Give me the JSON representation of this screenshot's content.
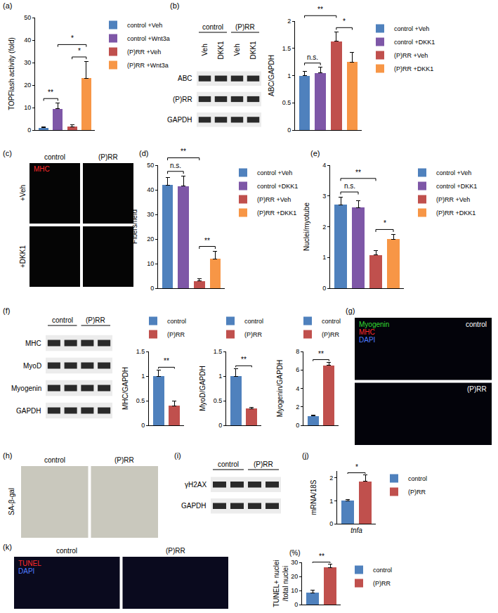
{
  "panel_labels": [
    "(a)",
    "(b)",
    "(c)",
    "(d)",
    "(e)",
    "(f)",
    "(g)",
    "(h)",
    "(i)",
    "(j)",
    "(k)"
  ],
  "chart_data": [
    {
      "type": "bar",
      "y_label": "TOPFlash activity (fold)",
      "ylim": [
        0,
        50
      ],
      "yticks": [
        0,
        10,
        20,
        30,
        40,
        50
      ],
      "grid": false,
      "legend": "right",
      "tick_labels": "y",
      "series": [
        {
          "name": "control +Veh",
          "color": "#4F81BD",
          "values": [
            1.0
          ],
          "errors": [
            0.3
          ]
        },
        {
          "name": "control +Wnt3a",
          "color": "#7E57A7",
          "values": [
            9.5
          ],
          "errors": [
            2.5
          ]
        },
        {
          "name": "(P)RR +Veh",
          "color": "#C0504D",
          "values": [
            1.5
          ],
          "errors": [
            0.7
          ]
        },
        {
          "name": "(P)RR +Wnt3a",
          "color": "#F79646",
          "values": [
            23
          ],
          "errors": [
            7.5
          ]
        }
      ],
      "significance": [
        {
          "from": 0,
          "to": 1,
          "text": "**"
        },
        {
          "from": 2,
          "to": 3,
          "text": "*"
        },
        {
          "from": 1,
          "to": 3,
          "text": "*"
        }
      ]
    },
    {
      "type": "bar",
      "y_label": "ABC/GAPDH",
      "ylim": [
        0,
        2
      ],
      "yticks": [
        0,
        0.5,
        1,
        1.5,
        2
      ],
      "grid": false,
      "legend": "right",
      "tick_labels": "y",
      "series": [
        {
          "name": "control +Veh",
          "color": "#4F81BD",
          "values": [
            1.0
          ],
          "errors": [
            0.08
          ]
        },
        {
          "name": "control +DKK1",
          "color": "#7E57A7",
          "values": [
            1.05
          ],
          "errors": [
            0.1
          ]
        },
        {
          "name": "(P)RR +Veh",
          "color": "#C0504D",
          "values": [
            1.63
          ],
          "errors": [
            0.17
          ]
        },
        {
          "name": "(P)RR +DKK1",
          "color": "#F79646",
          "values": [
            1.25
          ],
          "errors": [
            0.18
          ]
        }
      ],
      "significance": [
        {
          "from": 0,
          "to": 1,
          "text": "n.s."
        },
        {
          "from": 2,
          "to": 3,
          "text": "*"
        },
        {
          "from": 0,
          "to": 2,
          "text": "**"
        }
      ]
    },
    {
      "type": "bar",
      "y_label": "Fibers/field",
      "ylim": [
        0,
        50
      ],
      "yticks": [
        0,
        10,
        20,
        30,
        40,
        50
      ],
      "grid": false,
      "legend": "right",
      "tick_labels": "y",
      "series": [
        {
          "name": "control +Veh",
          "color": "#4F81BD",
          "values": [
            42
          ],
          "errors": [
            3
          ]
        },
        {
          "name": "control +DKK1",
          "color": "#7E57A7",
          "values": [
            41.5
          ],
          "errors": [
            4
          ]
        },
        {
          "name": "(P)RR +Veh",
          "color": "#C0504D",
          "values": [
            3
          ],
          "errors": [
            0.8
          ]
        },
        {
          "name": "(P)RR +DKK1",
          "color": "#F79646",
          "values": [
            12
          ],
          "errors": [
            3
          ]
        }
      ],
      "significance": [
        {
          "from": 0,
          "to": 1,
          "text": "n.s."
        },
        {
          "from": 2,
          "to": 3,
          "text": "**"
        },
        {
          "from": 0,
          "to": 2,
          "text": "**"
        }
      ]
    },
    {
      "type": "bar",
      "y_label": "Nuclei/myotube",
      "ylim": [
        0,
        4
      ],
      "yticks": [
        0,
        1,
        2,
        3,
        4
      ],
      "grid": false,
      "legend": "right",
      "tick_labels": "y",
      "series": [
        {
          "name": "control +Veh",
          "color": "#4F81BD",
          "values": [
            2.72
          ],
          "errors": [
            0.25
          ]
        },
        {
          "name": "control +DKK1",
          "color": "#7E57A7",
          "values": [
            2.62
          ],
          "errors": [
            0.22
          ]
        },
        {
          "name": "(P)RR +Veh",
          "color": "#C0504D",
          "values": [
            1.08
          ],
          "errors": [
            0.15
          ]
        },
        {
          "name": "(P)RR +DKK1",
          "color": "#F79646",
          "values": [
            1.6
          ],
          "errors": [
            0.15
          ]
        }
      ],
      "significance": [
        {
          "from": 0,
          "to": 1,
          "text": "n.s."
        },
        {
          "from": 2,
          "to": 3,
          "text": "*"
        },
        {
          "from": 0,
          "to": 2,
          "text": "**"
        }
      ]
    },
    {
      "type": "bar",
      "y_label": "MHC/GAPDH",
      "ylim": [
        0,
        1.5
      ],
      "yticks": [
        0,
        0.5,
        1,
        1.5
      ],
      "grid": false,
      "legend": "top",
      "tick_labels": "y",
      "series": [
        {
          "name": "control",
          "color": "#4F81BD",
          "values": [
            1.0
          ],
          "errors": [
            0.12
          ]
        },
        {
          "name": "(P)RR",
          "color": "#C0504D",
          "values": [
            0.4
          ],
          "errors": [
            0.1
          ]
        }
      ],
      "significance": [
        {
          "from": 0,
          "to": 1,
          "text": "**"
        }
      ]
    },
    {
      "type": "bar",
      "y_label": "MyoD/GAPDH",
      "ylim": [
        0,
        1.5
      ],
      "yticks": [
        0,
        0.5,
        1,
        1.5
      ],
      "grid": false,
      "legend": "top",
      "tick_labels": "y",
      "series": [
        {
          "name": "control",
          "color": "#4F81BD",
          "values": [
            1.0
          ],
          "errors": [
            0.15
          ]
        },
        {
          "name": "(P)RR",
          "color": "#C0504D",
          "values": [
            0.34
          ],
          "errors": [
            0.02
          ]
        }
      ],
      "significance": [
        {
          "from": 0,
          "to": 1,
          "text": "**"
        }
      ]
    },
    {
      "type": "bar",
      "y_label": "Myogenin/GAPDH",
      "ylim": [
        0,
        8
      ],
      "yticks": [
        0,
        2,
        4,
        6,
        8
      ],
      "grid": false,
      "legend": "top",
      "tick_labels": "y",
      "series": [
        {
          "name": "control",
          "color": "#4F81BD",
          "values": [
            1.0
          ],
          "errors": [
            0.12
          ]
        },
        {
          "name": "(P)RR",
          "color": "#C0504D",
          "values": [
            6.5
          ],
          "errors": [
            0.3
          ]
        }
      ],
      "significance": [
        {
          "from": 0,
          "to": 1,
          "text": "**"
        }
      ]
    },
    {
      "type": "bar",
      "y_label": "mRNA/18S",
      "categories": [
        "tnfa"
      ],
      "ylim": [
        0,
        2.3
      ],
      "yticks": [
        0,
        1,
        2
      ],
      "grid": false,
      "legend": "right",
      "series": [
        {
          "name": "control",
          "color": "#4F81BD",
          "values": [
            1.0
          ],
          "errors": [
            0.05
          ]
        },
        {
          "name": "(P)RR",
          "color": "#C0504D",
          "values": [
            1.85
          ],
          "errors": [
            0.28
          ]
        }
      ],
      "significance": [
        {
          "from": 0,
          "to": 1,
          "text": "*"
        }
      ]
    },
    {
      "type": "bar",
      "y_label": "TUNEL+ nuclei\n/total nuclei",
      "y_unit": "(%)",
      "ylim": [
        0,
        30
      ],
      "yticks": [
        0,
        10,
        20,
        30
      ],
      "grid": false,
      "legend": "right",
      "tick_labels": "y",
      "series": [
        {
          "name": "control",
          "color": "#4F81BD",
          "values": [
            8.5
          ],
          "errors": [
            1.8
          ]
        },
        {
          "name": "(P)RR",
          "color": "#C0504D",
          "values": [
            26.5
          ],
          "errors": [
            2.5
          ]
        }
      ],
      "significance": [
        {
          "from": 0,
          "to": 1,
          "text": "**"
        }
      ]
    }
  ],
  "blots": [
    {
      "groups": [
        "control",
        "(P)RR"
      ],
      "lanes": [
        "Veh",
        "DKK1",
        "Veh",
        "DKK1"
      ],
      "rows": [
        "ABC",
        "(P)RR",
        "GAPDH"
      ]
    },
    {
      "groups": [
        "control",
        "(P)RR"
      ],
      "rows": [
        "MHC",
        "MyoD",
        "Myogenin",
        "GAPDH"
      ]
    },
    {
      "groups": [
        "control",
        "(P)RR"
      ],
      "rows": [
        "γH2AX",
        "GAPDH"
      ]
    }
  ],
  "micrographs": [
    {
      "columns": [
        "control",
        "(P)RR"
      ],
      "rows": [
        "+Veh",
        "+DKK1"
      ],
      "stains": [
        {
          "text": "MHC",
          "color": "#FF2A2A"
        }
      ]
    },
    {
      "rows": [
        "control",
        "(P)RR"
      ],
      "stains": [
        {
          "text": "Myogenin",
          "color": "#33DD33"
        },
        {
          "text": "MHC",
          "color": "#FF2A2A"
        },
        {
          "text": "DAPI",
          "color": "#4F7BFF"
        }
      ]
    },
    {
      "columns": [
        "control",
        "(P)RR"
      ],
      "rows": [
        "SA-β-gal"
      ]
    },
    {
      "columns": [
        "control",
        "(P)RR"
      ],
      "stains": [
        {
          "text": "TUNEL",
          "color": "#FF2A2A"
        },
        {
          "text": "DAPI",
          "color": "#4F7BFF"
        }
      ]
    }
  ]
}
